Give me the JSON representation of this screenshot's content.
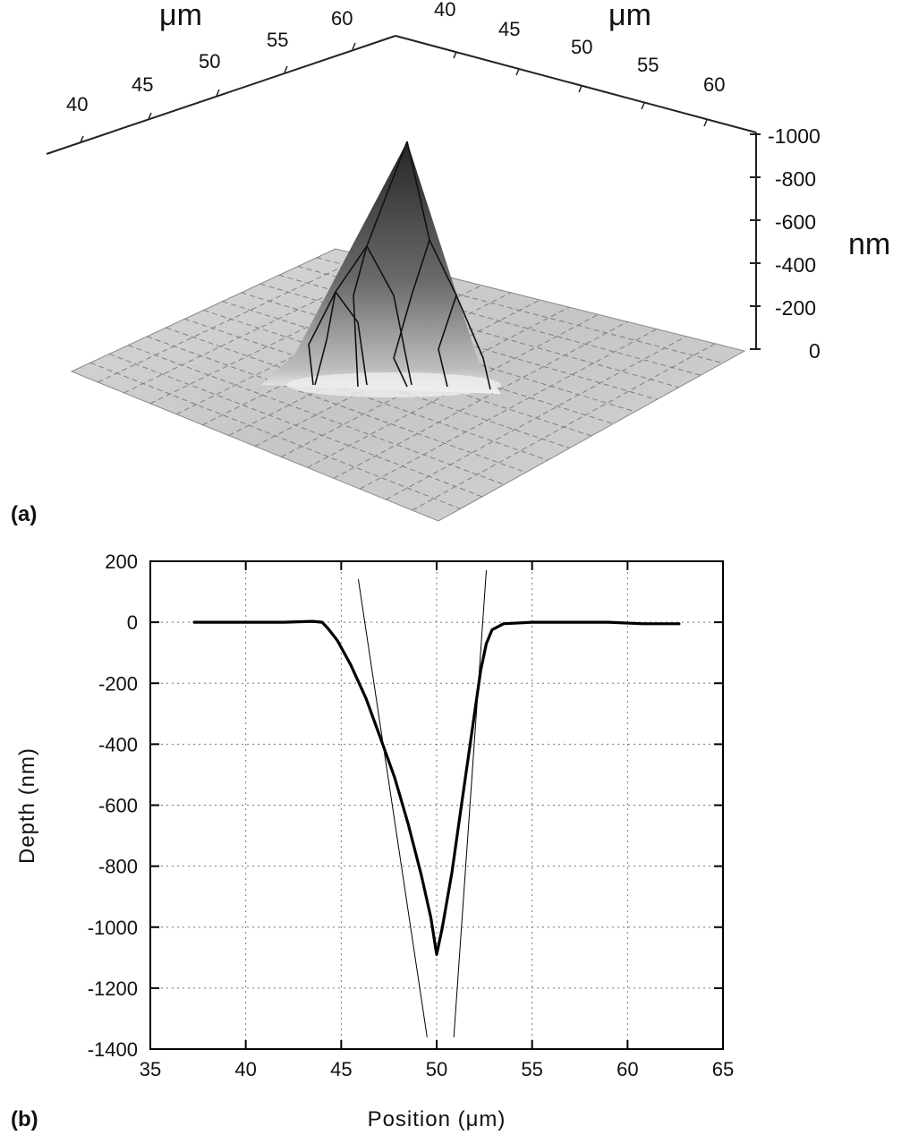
{
  "chart_data": [
    {
      "panel_label": "(a)",
      "type": "surface3d",
      "x_axis": {
        "unit": "μm",
        "ticks": [
          "40",
          "45",
          "50",
          "55",
          "60"
        ]
      },
      "y_axis": {
        "unit": "μm",
        "ticks": [
          "40",
          "45",
          "50",
          "55",
          "60"
        ]
      },
      "z_axis": {
        "unit": "nm",
        "ticks": [
          "-1000",
          "-800",
          "-600",
          "-400",
          "-200",
          "0"
        ],
        "range": [
          0,
          -1000
        ]
      },
      "peak": {
        "x": 50,
        "y": 50,
        "z": -1000
      },
      "colors": {
        "surface_dark": "#2a2a2a",
        "surface_light": "#f2f2f2",
        "plane": "#cfcfcf"
      }
    },
    {
      "panel_label": "(b)",
      "type": "line",
      "xlabel": "Position (μm)",
      "ylabel": "Depth (nm)",
      "xlim": [
        35,
        65
      ],
      "ylim": [
        -1400,
        200
      ],
      "xticks": [
        35,
        40,
        45,
        50,
        55,
        60,
        65
      ],
      "yticks": [
        200,
        0,
        -200,
        -400,
        -600,
        -800,
        -1000,
        -1200,
        -1400
      ],
      "grid": true,
      "series": [
        {
          "style": "thick",
          "x": [
            37.3,
            40,
            42,
            43.5,
            44.0,
            44.3,
            44.8,
            45.5,
            46.3,
            47.0,
            47.8,
            48.5,
            49.2,
            49.7,
            50.0,
            50.3,
            50.8,
            51.3,
            51.8,
            52.3,
            52.6,
            52.9,
            53.5,
            55,
            57,
            59,
            60.8,
            62.7
          ],
          "y": [
            0,
            0,
            0,
            3,
            0,
            -20,
            -60,
            -140,
            -250,
            -370,
            -510,
            -660,
            -830,
            -970,
            -1090,
            -1000,
            -820,
            -600,
            -380,
            -160,
            -70,
            -25,
            -5,
            0,
            0,
            0,
            -5,
            -5
          ]
        },
        {
          "style": "thin",
          "x": [
            45.9,
            49.5
          ],
          "y": [
            140,
            -1360
          ]
        },
        {
          "style": "thin",
          "x": [
            52.6,
            50.9
          ],
          "y": [
            170,
            -1360
          ]
        }
      ]
    }
  ]
}
